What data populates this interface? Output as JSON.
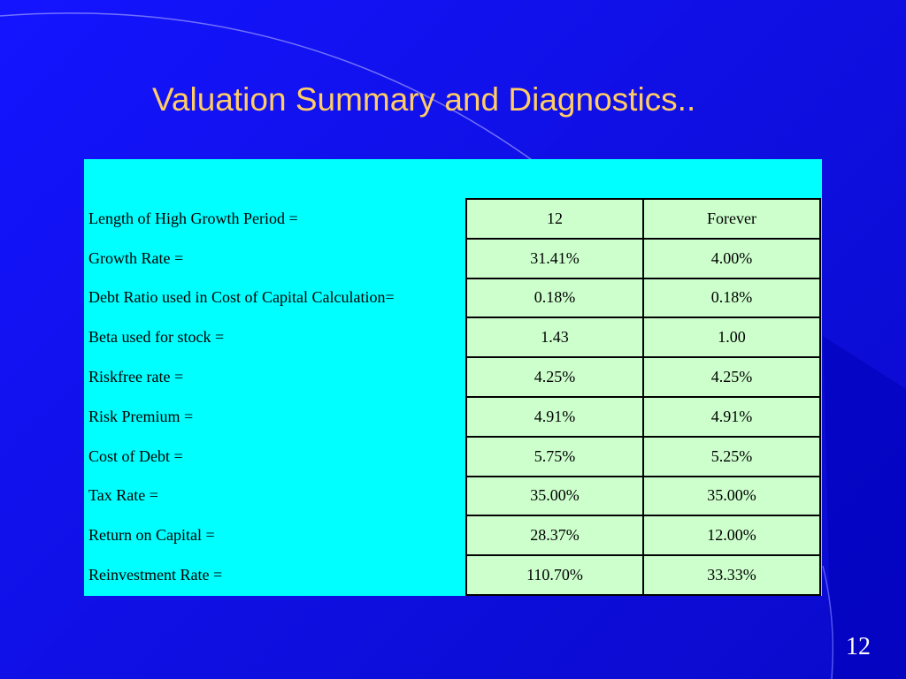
{
  "slide": {
    "title": "Valuation Summary and Diagnostics..",
    "number": "12"
  },
  "table": {
    "rows": [
      {
        "label": "Length of High Growth Period =",
        "high_growth": "12",
        "stable": "Forever"
      },
      {
        "label": "Growth Rate =",
        "high_growth": "31.41%",
        "stable": "4.00%"
      },
      {
        "label": "Debt Ratio used in Cost of Capital Calculation=",
        "high_growth": "0.18%",
        "stable": "0.18%"
      },
      {
        "label": "Beta used for stock =",
        "high_growth": "1.43",
        "stable": "1.00"
      },
      {
        "label": "Riskfree rate =",
        "high_growth": "4.25%",
        "stable": "4.25%"
      },
      {
        "label": "Risk Premium =",
        "high_growth": "4.91%",
        "stable": "4.91%"
      },
      {
        "label": "Cost of Debt =",
        "high_growth": "5.75%",
        "stable": "5.25%"
      },
      {
        "label": "Tax Rate =",
        "high_growth": "35.00%",
        "stable": "35.00%"
      },
      {
        "label": "Return on Capital =",
        "high_growth": "28.37%",
        "stable": "12.00%"
      },
      {
        "label": "Reinvestment Rate =",
        "high_growth": "110.70%",
        "stable": "33.33%"
      }
    ]
  },
  "colors": {
    "background": "#1414ff",
    "title": "#ffcc66",
    "panel": "#00ffff",
    "value_cell": "#ccffcc"
  }
}
